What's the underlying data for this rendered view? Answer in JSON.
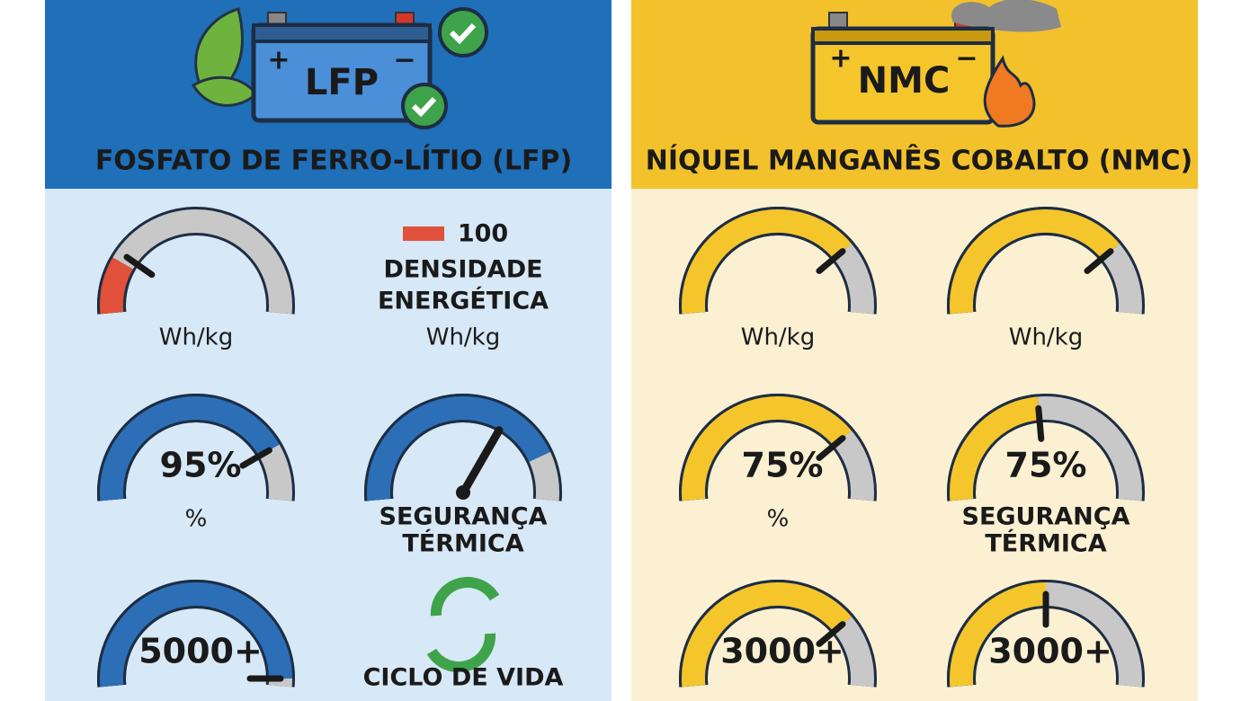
{
  "panels": [
    {
      "badge": "LFP",
      "plus": "+",
      "minus": "−",
      "title": "FOSFATO DE FERRO-LÍTIO (LFP)",
      "cells": [
        {
          "unit": "Wh/kg"
        },
        {
          "value": "100",
          "label": [
            "DENSIDADE",
            "ENERGÉTICA"
          ],
          "unit": "Wh/kg"
        },
        {
          "value": "95%",
          "unit": "%"
        },
        {
          "label": [
            "SEGURANÇA",
            "TÉRMICA"
          ]
        },
        {
          "value": "5000+"
        },
        {
          "label": [
            "CICLO DE VIDA"
          ]
        }
      ]
    },
    {
      "badge": "NMC",
      "plus": "+",
      "minus": "−",
      "title": "NÍQUEL MANGANÊS COBALTO (NMC)",
      "cells": [
        {
          "unit": "Wh/kg"
        },
        {
          "unit": "Wh/kg"
        },
        {
          "value": "75%",
          "unit": "%"
        },
        {
          "value": "75%",
          "label": [
            "SEGURANÇA",
            "TÉRMICA"
          ]
        },
        {
          "value": "3000+"
        },
        {
          "value": "3000+"
        }
      ]
    }
  ]
}
